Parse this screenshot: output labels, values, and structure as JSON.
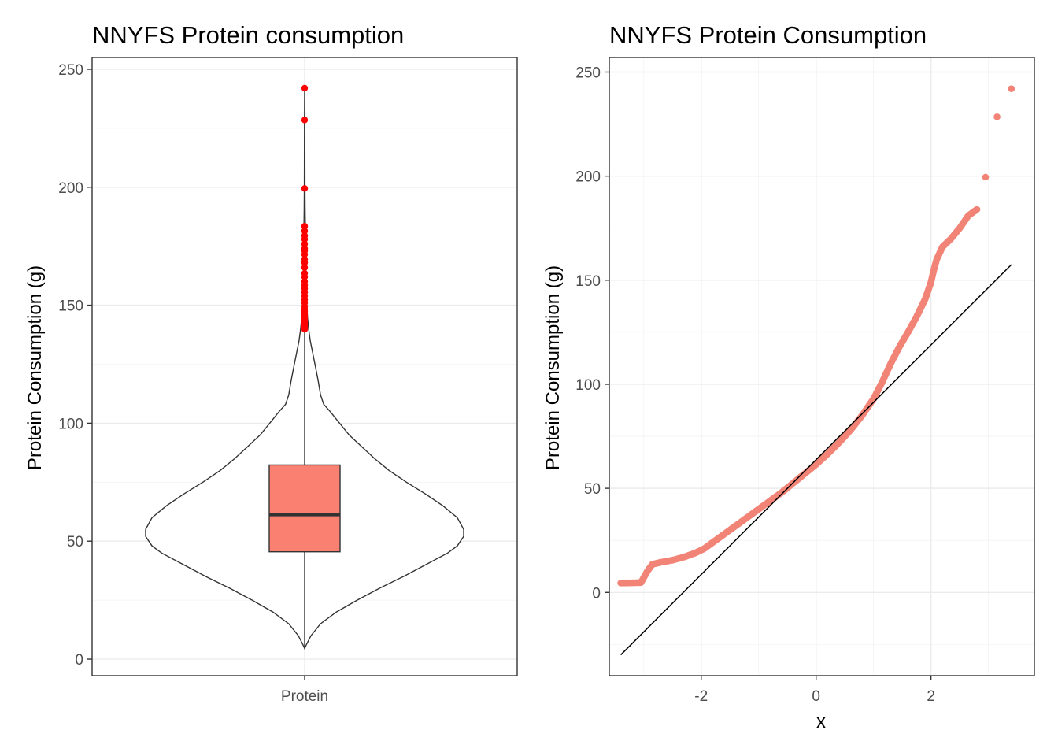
{
  "chart_data": [
    {
      "type": "violin",
      "title": "NNYFS Protein consumption",
      "xlabel": "",
      "ylabel": "Protein Consumption (g)",
      "categories": [
        "Protein"
      ],
      "ylim": [
        -7,
        255
      ],
      "yticks": [
        0,
        50,
        100,
        150,
        200,
        250
      ],
      "grid": true,
      "box": {
        "min": 4.5,
        "q1": 45.5,
        "median": 61.2,
        "q3": 82.3,
        "whisker_high": 139.5,
        "fill": "#fa8072"
      },
      "outliers": [
        139.8,
        140.5,
        141.2,
        142.0,
        142.8,
        143.5,
        144.3,
        145.0,
        146.0,
        147.2,
        148.3,
        149.5,
        151.0,
        152.3,
        154.0,
        155.5,
        157.0,
        158.5,
        160.0,
        162.0,
        163.5,
        166.0,
        168.0,
        169.5,
        171.5,
        173.0,
        174.0,
        176.0,
        178.0,
        179.5,
        181.5,
        183.5,
        199.5,
        228.5,
        242.0
      ],
      "outlier_color": "#ff0000",
      "violin_density": [
        [
          4.5,
          0.0
        ],
        [
          6,
          0.01
        ],
        [
          10,
          0.04
        ],
        [
          15,
          0.1
        ],
        [
          20,
          0.2
        ],
        [
          25,
          0.33
        ],
        [
          30,
          0.47
        ],
        [
          35,
          0.62
        ],
        [
          40,
          0.76
        ],
        [
          45,
          0.9
        ],
        [
          48,
          0.96
        ],
        [
          52,
          1.0
        ],
        [
          55,
          1.0
        ],
        [
          60,
          0.96
        ],
        [
          65,
          0.87
        ],
        [
          70,
          0.76
        ],
        [
          75,
          0.64
        ],
        [
          80,
          0.53
        ],
        [
          85,
          0.44
        ],
        [
          90,
          0.36
        ],
        [
          95,
          0.28
        ],
        [
          100,
          0.22
        ],
        [
          105,
          0.16
        ],
        [
          108,
          0.12
        ],
        [
          112,
          0.1
        ],
        [
          118,
          0.085
        ],
        [
          125,
          0.065
        ],
        [
          130,
          0.05
        ],
        [
          135,
          0.035
        ],
        [
          140,
          0.025
        ],
        [
          145,
          0.018
        ],
        [
          150,
          0.013
        ],
        [
          160,
          0.009
        ],
        [
          170,
          0.007
        ],
        [
          180,
          0.005
        ],
        [
          190,
          0.003
        ],
        [
          200,
          0.002
        ],
        [
          215,
          0.0015
        ],
        [
          230,
          0.001
        ],
        [
          242,
          0.0
        ]
      ]
    },
    {
      "type": "scatter",
      "title": "NNYFS Protein Consumption",
      "xlabel": "x",
      "ylabel": "Protein Consumption (g)",
      "xlim": [
        -3.6,
        3.8
      ],
      "ylim": [
        -40,
        257
      ],
      "xticks": [
        -2,
        0,
        2
      ],
      "yticks": [
        0,
        50,
        100,
        150,
        200,
        250
      ],
      "grid": true,
      "point_color": "#f28477",
      "reference_line": {
        "x": [
          -3.4,
          3.4
        ],
        "y": [
          -30,
          157.5
        ]
      },
      "quantile_curve": [
        [
          -3.4,
          4.5
        ],
        [
          -3.05,
          4.7
        ],
        [
          -2.93,
          10.5
        ],
        [
          -2.85,
          13.5
        ],
        [
          -2.7,
          14.5
        ],
        [
          -2.5,
          15.5
        ],
        [
          -2.3,
          17.0
        ],
        [
          -2.1,
          19.0
        ],
        [
          -1.95,
          21.0
        ],
        [
          -1.8,
          24.0
        ],
        [
          -1.6,
          28.0
        ],
        [
          -1.4,
          32.0
        ],
        [
          -1.2,
          36.0
        ],
        [
          -1.0,
          40.0
        ],
        [
          -0.8,
          44.0
        ],
        [
          -0.6,
          48.0
        ],
        [
          -0.4,
          52.5
        ],
        [
          -0.2,
          57.0
        ],
        [
          0.0,
          61.5
        ],
        [
          0.2,
          66.5
        ],
        [
          0.4,
          72.0
        ],
        [
          0.6,
          78.0
        ],
        [
          0.8,
          85.0
        ],
        [
          1.0,
          93.0
        ],
        [
          1.15,
          101.0
        ],
        [
          1.3,
          110.0
        ],
        [
          1.45,
          118.0
        ],
        [
          1.6,
          125.0
        ],
        [
          1.75,
          132.5
        ],
        [
          1.9,
          141.0
        ],
        [
          2.0,
          149.0
        ],
        [
          2.05,
          155.0
        ],
        [
          2.1,
          160.0
        ],
        [
          2.2,
          166.0
        ],
        [
          2.35,
          170.0
        ],
        [
          2.5,
          175.0
        ],
        [
          2.65,
          181.0
        ],
        [
          2.8,
          184.0
        ]
      ],
      "tail_points": [
        [
          2.95,
          199.5
        ],
        [
          3.15,
          228.5
        ],
        [
          3.4,
          242.0
        ]
      ]
    }
  ]
}
